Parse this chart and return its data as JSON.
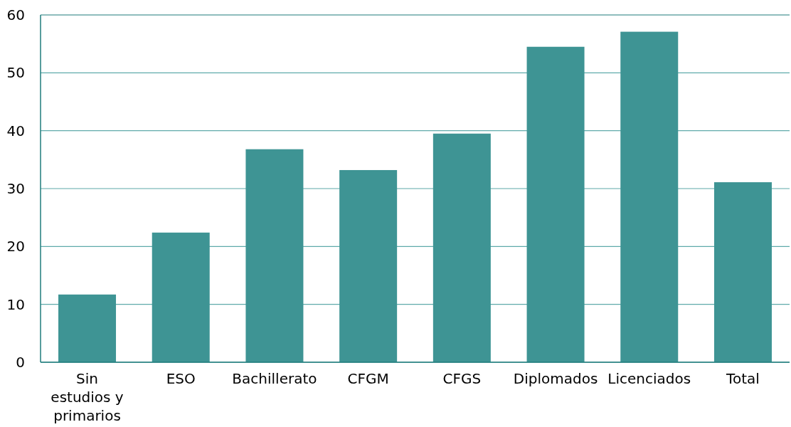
{
  "chart_data": {
    "type": "bar",
    "categories": [
      "Sin estudios y primarios",
      "ESO",
      "Bachillerato",
      "CFGM",
      "CFGS",
      "Diplomados",
      "Licenciados",
      "Total"
    ],
    "values": [
      11.7,
      22.4,
      36.8,
      33.2,
      39.5,
      54.5,
      57.1,
      31.1
    ],
    "color": "#3e9494",
    "ylim": [
      0,
      60
    ],
    "yticks": [
      0,
      10,
      20,
      30,
      40,
      50,
      60
    ],
    "grid": "y"
  }
}
